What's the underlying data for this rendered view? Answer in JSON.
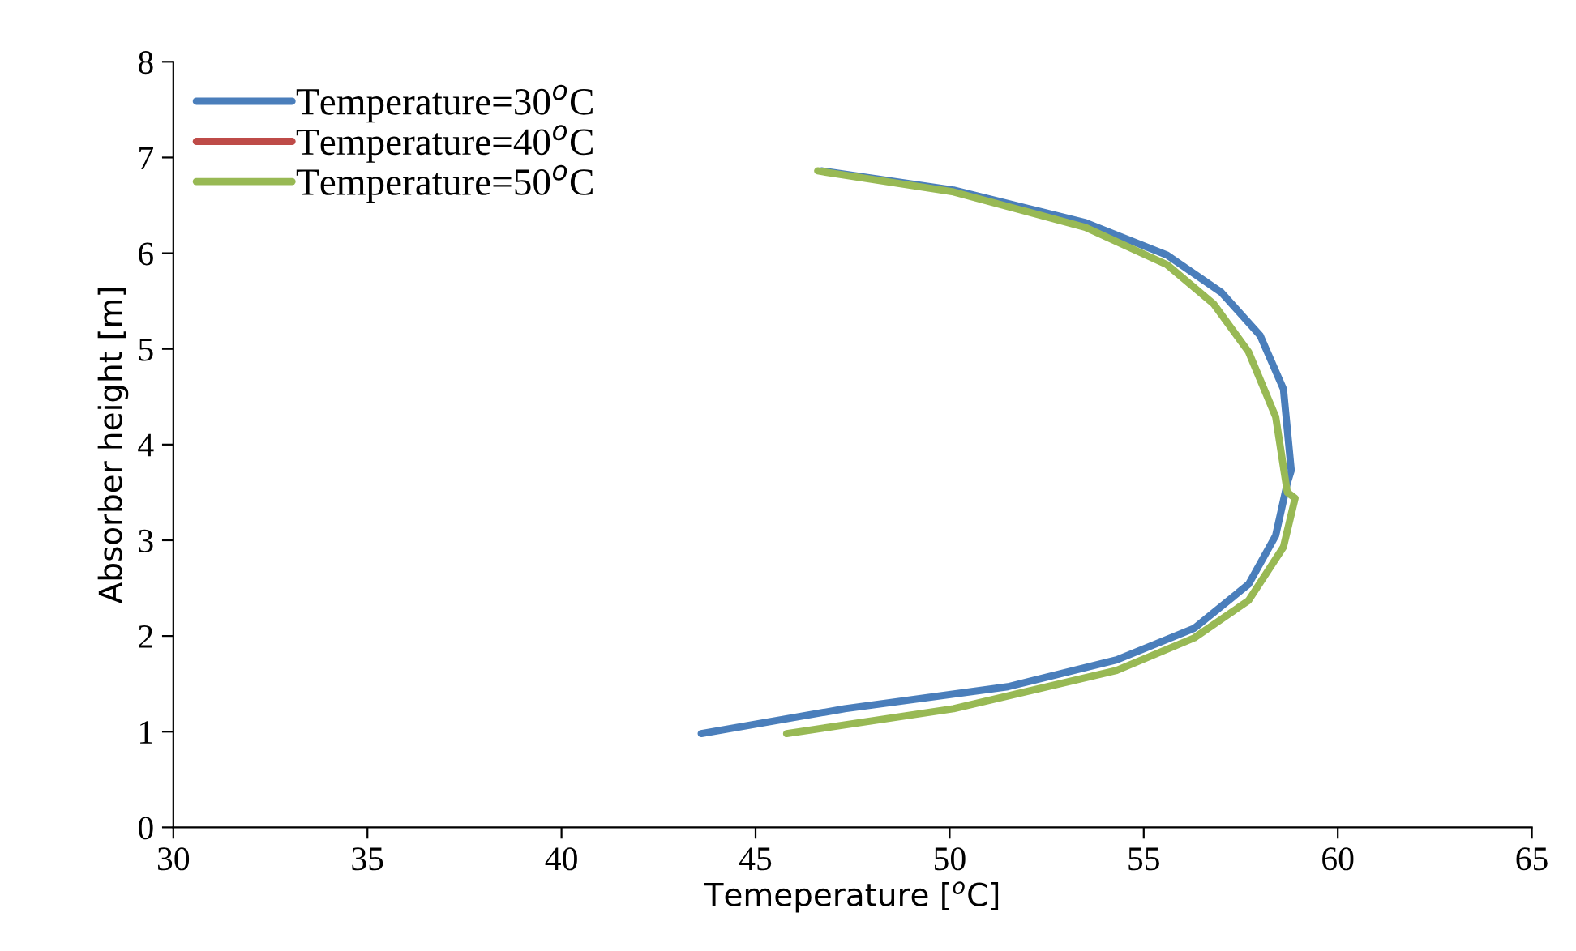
{
  "chart_data": {
    "type": "line",
    "xlabel": "Temeperature [$^{o}$C]",
    "ylabel": "Absorber height [m]",
    "xlim": [
      30,
      65
    ],
    "xticks": [
      30,
      35,
      40,
      45,
      50,
      55,
      60,
      65
    ],
    "ylim": [
      0,
      8
    ],
    "yticks": [
      0,
      1,
      2,
      3,
      4,
      5,
      6,
      7,
      8
    ],
    "grid": false,
    "legend": "top left",
    "marker": "none",
    "line_style": "solid",
    "series": [
      {
        "name": "Temperature=30$^{o}$C",
        "color": "#4a7ebb",
        "x": [
          43.6,
          47.3,
          51.5,
          54.3,
          56.3,
          57.7,
          58.4,
          58.7,
          58.8,
          58.6,
          58.0,
          57.0,
          55.6,
          53.5,
          50.1,
          46.7
        ],
        "values": [
          0.98,
          1.24,
          1.47,
          1.75,
          2.08,
          2.54,
          3.05,
          3.6,
          3.73,
          4.58,
          5.14,
          5.59,
          5.98,
          6.32,
          6.66,
          6.86
        ]
      },
      {
        "name": "Temperature=40$^{o}$C",
        "color": "#be4b48"
      },
      {
        "name": "Temperature=50$^{o}$C",
        "color": "#98b954",
        "x": [
          45.8,
          50.1,
          54.3,
          56.3,
          57.7,
          58.6,
          58.9,
          58.7,
          58.4,
          57.7,
          56.8,
          55.6,
          53.5,
          50.1,
          46.6
        ],
        "values": [
          0.98,
          1.24,
          1.64,
          1.98,
          2.37,
          2.93,
          3.44,
          3.5,
          4.29,
          4.97,
          5.47,
          5.88,
          6.27,
          6.64,
          6.86
        ]
      }
    ]
  }
}
